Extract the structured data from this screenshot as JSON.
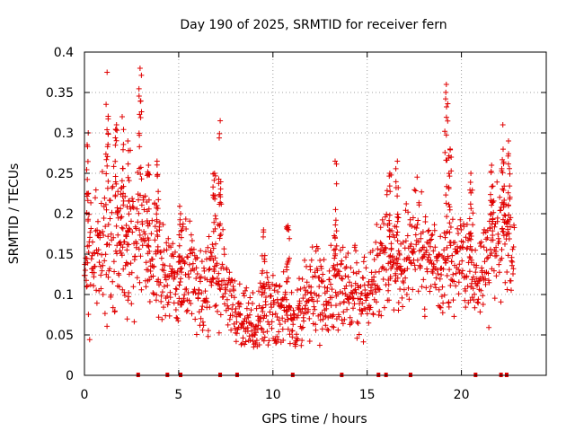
{
  "chart_data": {
    "type": "scatter",
    "title": "Day 190 of 2025, SRMTID for receiver fern",
    "xlabel": "GPS time / hours",
    "ylabel": "SRMTID / TECUs",
    "xlim": [
      0,
      24.5
    ],
    "ylim": [
      0,
      0.4
    ],
    "xticks": [
      0,
      5,
      10,
      15,
      20
    ],
    "xtick_labels": [
      "0",
      "5",
      "10",
      "15",
      "20"
    ],
    "yticks": [
      0,
      0.05,
      0.1,
      0.15,
      0.2,
      0.25,
      0.3,
      0.35,
      0.4
    ],
    "ytick_labels": [
      "0",
      "0.05",
      "0.1",
      "0.15",
      "0.2",
      "0.25",
      "0.3",
      "0.35",
      "0.4"
    ],
    "grid": true,
    "marker": "+",
    "color": "#e00000",
    "data_gap_markers_x": [
      2.85,
      4.4,
      5.1,
      7.2,
      8.1,
      11.05,
      13.65,
      15.6,
      16.0,
      17.3,
      20.75,
      22.1,
      22.4
    ],
    "envelope": {
      "x": [
        0.0,
        0.3,
        0.6,
        0.9,
        1.2,
        1.5,
        1.8,
        2.1,
        2.4,
        2.7,
        3.0,
        3.3,
        3.6,
        3.9,
        4.2,
        4.5,
        4.8,
        5.1,
        5.4,
        5.7,
        6.0,
        6.3,
        6.6,
        6.9,
        7.2,
        7.5,
        7.8,
        8.1,
        8.4,
        8.7,
        9.0,
        9.3,
        9.6,
        9.9,
        10.2,
        10.5,
        10.8,
        11.1,
        11.4,
        11.7,
        12.0,
        12.3,
        12.6,
        12.9,
        13.2,
        13.5,
        13.8,
        14.1,
        14.4,
        14.7,
        15.0,
        15.3,
        15.6,
        15.9,
        16.2,
        16.5,
        16.8,
        17.1,
        17.4,
        17.7,
        18.0,
        18.3,
        18.6,
        18.9,
        19.2,
        19.5,
        19.8,
        20.1,
        20.4,
        20.7,
        21.0,
        21.3,
        21.6,
        21.9,
        22.2,
        22.5,
        22.8
      ],
      "center": [
        0.12,
        0.14,
        0.15,
        0.14,
        0.16,
        0.17,
        0.16,
        0.15,
        0.17,
        0.16,
        0.17,
        0.16,
        0.15,
        0.14,
        0.13,
        0.12,
        0.11,
        0.12,
        0.13,
        0.12,
        0.11,
        0.1,
        0.13,
        0.14,
        0.12,
        0.1,
        0.09,
        0.07,
        0.07,
        0.06,
        0.06,
        0.07,
        0.08,
        0.08,
        0.07,
        0.08,
        0.08,
        0.07,
        0.07,
        0.09,
        0.1,
        0.11,
        0.1,
        0.09,
        0.11,
        0.12,
        0.1,
        0.09,
        0.1,
        0.09,
        0.1,
        0.11,
        0.13,
        0.14,
        0.15,
        0.14,
        0.13,
        0.14,
        0.15,
        0.16,
        0.15,
        0.14,
        0.13,
        0.12,
        0.15,
        0.14,
        0.14,
        0.13,
        0.14,
        0.12,
        0.13,
        0.14,
        0.16,
        0.17,
        0.18,
        0.17,
        0.16
      ],
      "spread": [
        0.04,
        0.05,
        0.05,
        0.06,
        0.07,
        0.07,
        0.06,
        0.06,
        0.06,
        0.06,
        0.06,
        0.05,
        0.05,
        0.05,
        0.05,
        0.04,
        0.04,
        0.05,
        0.05,
        0.05,
        0.04,
        0.04,
        0.05,
        0.05,
        0.05,
        0.04,
        0.03,
        0.03,
        0.03,
        0.03,
        0.02,
        0.03,
        0.03,
        0.03,
        0.03,
        0.03,
        0.03,
        0.03,
        0.03,
        0.03,
        0.03,
        0.04,
        0.04,
        0.03,
        0.04,
        0.04,
        0.04,
        0.03,
        0.04,
        0.03,
        0.03,
        0.03,
        0.04,
        0.05,
        0.05,
        0.04,
        0.04,
        0.04,
        0.04,
        0.05,
        0.04,
        0.04,
        0.04,
        0.04,
        0.05,
        0.04,
        0.04,
        0.04,
        0.04,
        0.04,
        0.04,
        0.04,
        0.05,
        0.05,
        0.05,
        0.05,
        0.05
      ]
    },
    "peaks": [
      {
        "x": 0.2,
        "y": 0.3
      },
      {
        "x": 1.2,
        "y": 0.375
      },
      {
        "x": 1.7,
        "y": 0.31
      },
      {
        "x": 2.0,
        "y": 0.32
      },
      {
        "x": 2.3,
        "y": 0.29
      },
      {
        "x": 2.95,
        "y": 0.38
      },
      {
        "x": 3.4,
        "y": 0.26
      },
      {
        "x": 3.85,
        "y": 0.265
      },
      {
        "x": 5.1,
        "y": 0.2
      },
      {
        "x": 6.9,
        "y": 0.25
      },
      {
        "x": 7.2,
        "y": 0.315
      },
      {
        "x": 9.5,
        "y": 0.18
      },
      {
        "x": 10.8,
        "y": 0.185
      },
      {
        "x": 13.3,
        "y": 0.265
      },
      {
        "x": 16.2,
        "y": 0.25
      },
      {
        "x": 16.6,
        "y": 0.265
      },
      {
        "x": 19.2,
        "y": 0.36
      },
      {
        "x": 19.4,
        "y": 0.28
      },
      {
        "x": 20.5,
        "y": 0.25
      },
      {
        "x": 21.6,
        "y": 0.26
      },
      {
        "x": 22.2,
        "y": 0.31
      },
      {
        "x": 22.5,
        "y": 0.29
      }
    ]
  }
}
